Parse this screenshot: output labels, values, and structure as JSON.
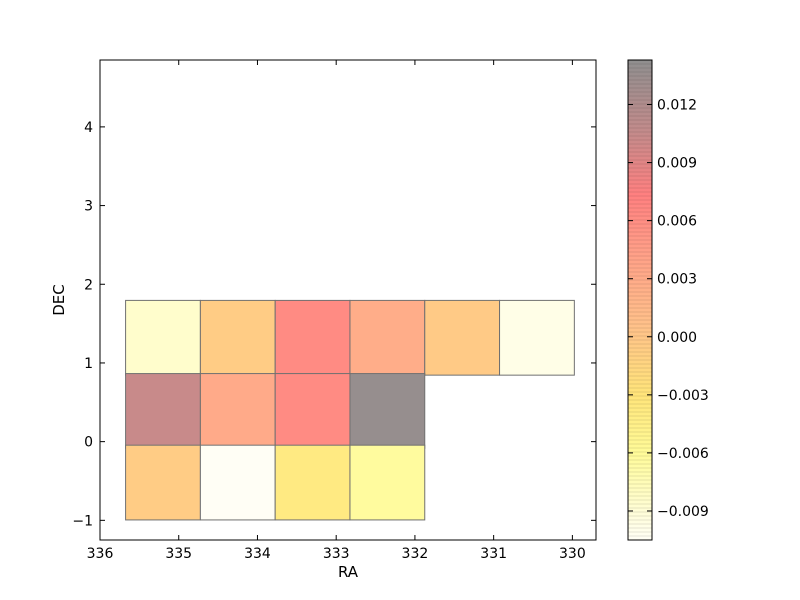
{
  "chart_data": {
    "type": "heatmap",
    "title": "",
    "xlabel": "RA",
    "ylabel": "DEC",
    "xlim": [
      336,
      329.7
    ],
    "ylim": [
      -1.25,
      4.85
    ],
    "x_ticks": [
      336,
      335,
      334,
      333,
      332,
      331,
      330
    ],
    "x_tick_labels": [
      "336",
      "335",
      "334",
      "333",
      "332",
      "331",
      "330"
    ],
    "y_ticks": [
      -1,
      0,
      1,
      2,
      3,
      4
    ],
    "y_tick_labels": [
      "−1",
      "0",
      "1",
      "2",
      "3",
      "4"
    ],
    "colorbar": {
      "colormap": "hot_r (alpha 0.4)",
      "range": [
        -0.0105,
        0.0143
      ],
      "ticks": [
        -0.009,
        -0.006,
        -0.003,
        0.0,
        0.003,
        0.006,
        0.009,
        0.012
      ],
      "tick_labels": [
        "−0.009",
        "−0.006",
        "−0.003",
        "0.000",
        "0.003",
        "0.006",
        "0.009",
        "0.012"
      ]
    },
    "cell_size": {
      "ra": 0.95,
      "dec": 0.95
    },
    "cells": [
      {
        "ra": 335.2,
        "dec": 1.32,
        "value": -0.0085
      },
      {
        "ra": 334.25,
        "dec": 1.32,
        "value": -0.0005
      },
      {
        "ra": 333.3,
        "dec": 1.32,
        "value": 0.0063
      },
      {
        "ra": 332.35,
        "dec": 1.32,
        "value": 0.0028
      },
      {
        "ra": 331.4,
        "dec": 1.32,
        "value": -0.0003
      },
      {
        "ra": 330.45,
        "dec": 1.32,
        "value": -0.0098
      },
      {
        "ra": 335.2,
        "dec": 0.39,
        "value": 0.0103
      },
      {
        "ra": 334.25,
        "dec": 0.39,
        "value": 0.0031
      },
      {
        "ra": 333.3,
        "dec": 0.39,
        "value": 0.0063
      },
      {
        "ra": 332.35,
        "dec": 0.39,
        "value": 0.0138
      },
      {
        "ra": 335.2,
        "dec": -0.52,
        "value": -0.0005
      },
      {
        "ra": 334.25,
        "dec": -0.52,
        "value": -0.0105
      },
      {
        "ra": 333.3,
        "dec": -0.52,
        "value": -0.0038
      },
      {
        "ra": 332.35,
        "dec": -0.52,
        "value": -0.0063
      }
    ]
  }
}
